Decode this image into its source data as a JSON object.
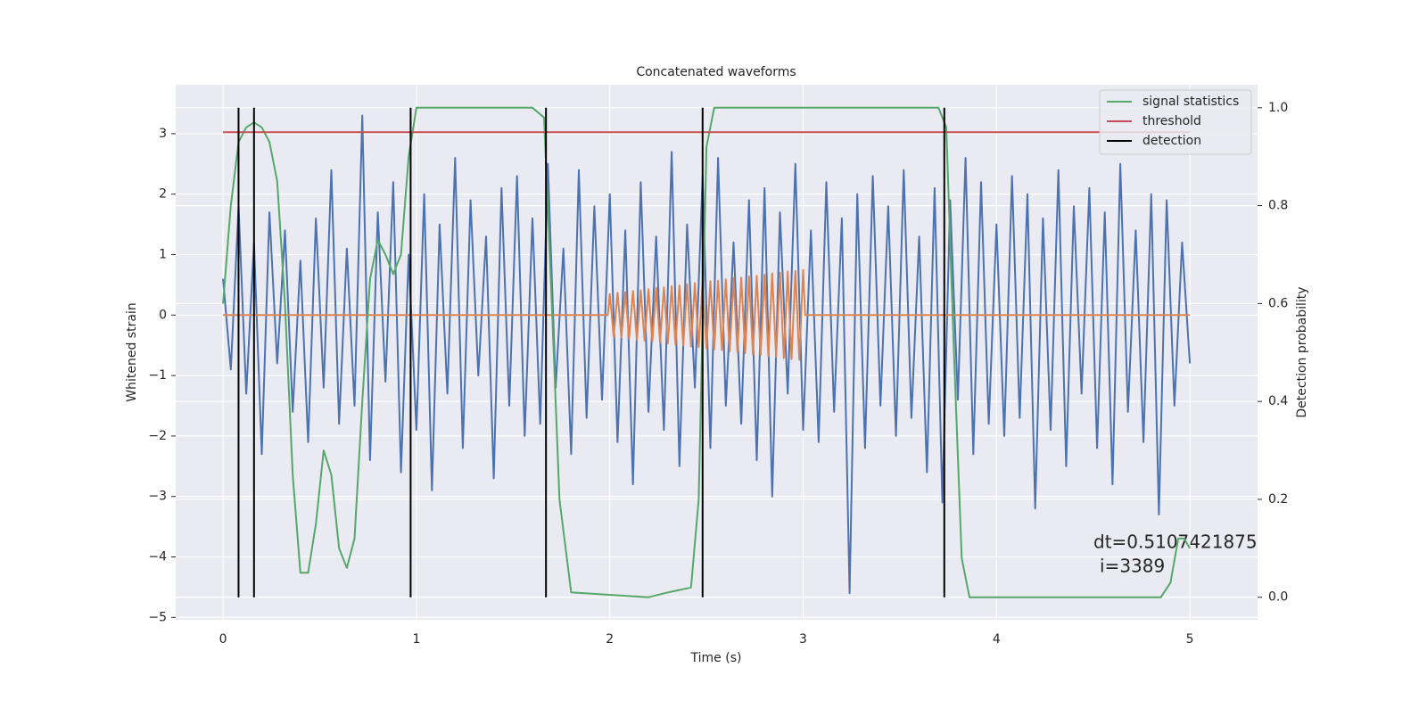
{
  "chart_data": {
    "type": "line",
    "title": "Concatenated waveforms",
    "xlabel": "Time (s)",
    "ylabel": "Whitened strain",
    "y2label": "Detection probability",
    "xlim": [
      -0.245,
      5.35
    ],
    "xticks": [
      0,
      1,
      2,
      3,
      4,
      5
    ],
    "ylim": [
      -5.04,
      3.81
    ],
    "yticks": [
      {
        "value": -5,
        "label": "−5"
      },
      {
        "value": -4,
        "label": "−4"
      },
      {
        "value": -3,
        "label": "−3"
      },
      {
        "value": -2,
        "label": "−2"
      },
      {
        "value": -1,
        "label": "−1"
      },
      0,
      1,
      2,
      3
    ],
    "y2lim": [
      -0.046,
      1.047
    ],
    "y2ticks": [
      {
        "value": 0,
        "label": "0.0"
      },
      0.2,
      0.4,
      0.6,
      0.8,
      {
        "value": 1,
        "label": "1.0"
      }
    ],
    "grid": true,
    "legend": "upper right",
    "series": [
      {
        "color": "#4c72b0",
        "kind": "line",
        "axis": "y",
        "x": [
          0,
          0.04,
          0.08,
          0.12,
          0.16,
          0.2,
          0.24,
          0.28,
          0.32,
          0.36,
          0.4,
          0.44,
          0.48,
          0.52,
          0.56,
          0.6,
          0.64,
          0.68,
          0.72,
          0.76,
          0.8,
          0.84,
          0.88,
          0.92,
          0.96,
          1,
          1.04,
          1.08,
          1.12,
          1.16,
          1.2,
          1.24,
          1.28,
          1.32,
          1.36,
          1.4,
          1.44,
          1.48,
          1.52,
          1.56,
          1.6,
          1.64,
          1.68,
          1.72,
          1.76,
          1.8,
          1.84,
          1.88,
          1.92,
          1.96,
          2,
          2.04,
          2.08,
          2.12,
          2.16,
          2.2,
          2.24,
          2.28,
          2.32,
          2.36,
          2.4,
          2.44,
          2.48,
          2.52,
          2.56,
          2.6,
          2.64,
          2.68,
          2.72,
          2.76,
          2.8,
          2.84,
          2.88,
          2.92,
          2.96,
          3,
          3.04,
          3.08,
          3.12,
          3.16,
          3.2,
          3.24,
          3.28,
          3.32,
          3.36,
          3.4,
          3.44,
          3.48,
          3.52,
          3.56,
          3.6,
          3.64,
          3.68,
          3.72,
          3.76,
          3.8,
          3.84,
          3.88,
          3.92,
          3.96,
          4,
          4.04,
          4.08,
          4.12,
          4.16,
          4.2,
          4.24,
          4.28,
          4.32,
          4.36,
          4.4,
          4.44,
          4.48,
          4.52,
          4.56,
          4.6,
          4.64,
          4.68,
          4.72,
          4.76,
          4.8,
          4.84,
          4.88,
          4.92,
          4.96,
          5
        ],
        "values": [
          0.6,
          -0.9,
          1.8,
          -1.3,
          1.2,
          -2.3,
          1.7,
          -0.8,
          1.4,
          -1.6,
          0.9,
          -2.1,
          1.6,
          -1.2,
          2.4,
          -1.8,
          1.1,
          -1.5,
          3.3,
          -2.4,
          1.7,
          -1.1,
          2.2,
          -2.6,
          1.0,
          -1.9,
          2.0,
          -2.9,
          1.5,
          -1.3,
          2.6,
          -2.2,
          1.9,
          -1.0,
          1.3,
          -2.7,
          2.1,
          -1.5,
          2.3,
          -2.0,
          1.6,
          -1.8,
          2.5,
          -1.2,
          1.1,
          -2.3,
          2.4,
          -1.7,
          1.8,
          -1.4,
          2.0,
          -2.1,
          1.4,
          -2.8,
          2.2,
          -1.6,
          1.3,
          -1.9,
          2.7,
          -2.5,
          1.5,
          -1.2,
          2.3,
          -2.2,
          2.6,
          -1.5,
          1.2,
          -1.8,
          1.9,
          -2.4,
          2.1,
          -3.0,
          1.7,
          -1.3,
          2.5,
          -1.9,
          1.4,
          -2.1,
          2.2,
          -1.6,
          1.6,
          -4.6,
          2.0,
          -2.2,
          2.3,
          -1.5,
          1.8,
          -2.0,
          2.4,
          -1.7,
          1.3,
          -2.6,
          2.1,
          -3.1,
          1.9,
          -1.4,
          2.6,
          -2.3,
          2.2,
          -1.8,
          1.5,
          -2.0,
          2.3,
          -1.7,
          2.0,
          -3.2,
          1.6,
          -1.9,
          2.4,
          -2.5,
          1.8,
          -1.3,
          2.1,
          -2.2,
          1.7,
          -2.8,
          2.5,
          -1.6,
          1.4,
          -2.1,
          2.0,
          -3.3,
          1.9,
          -1.5,
          1.2,
          -0.8
        ]
      },
      {
        "color": "#dd8452",
        "kind": "line",
        "axis": "y",
        "x": [
          0,
          1.99,
          2,
          2.02,
          2.04,
          2.06,
          2.08,
          2.1,
          2.12,
          2.14,
          2.16,
          2.18,
          2.2,
          2.22,
          2.24,
          2.26,
          2.28,
          2.3,
          2.32,
          2.34,
          2.36,
          2.38,
          2.4,
          2.42,
          2.44,
          2.46,
          2.48,
          2.5,
          2.52,
          2.54,
          2.56,
          2.58,
          2.6,
          2.62,
          2.64,
          2.66,
          2.68,
          2.7,
          2.72,
          2.74,
          2.76,
          2.78,
          2.8,
          2.82,
          2.84,
          2.86,
          2.88,
          2.9,
          2.92,
          2.94,
          2.96,
          2.98,
          3,
          3.01,
          5
        ],
        "values": [
          0,
          0,
          0.35,
          -0.36,
          0.37,
          -0.37,
          0.38,
          -0.39,
          0.4,
          -0.41,
          0.41,
          -0.42,
          0.43,
          -0.44,
          0.45,
          -0.45,
          0.46,
          -0.47,
          0.48,
          -0.49,
          0.49,
          -0.5,
          0.51,
          -0.52,
          0.53,
          -0.53,
          0.54,
          -0.55,
          0.56,
          -0.57,
          0.57,
          -0.58,
          0.59,
          -0.6,
          0.61,
          -0.61,
          0.62,
          -0.63,
          0.64,
          -0.65,
          0.65,
          -0.66,
          0.67,
          -0.68,
          0.69,
          -0.69,
          0.7,
          -0.71,
          0.72,
          -0.73,
          0.73,
          -0.74,
          0.75,
          0,
          0
        ]
      },
      {
        "name": "signal statistics",
        "color": "#55a868",
        "kind": "line",
        "axis": "y2",
        "x": [
          0,
          0.04,
          0.08,
          0.12,
          0.16,
          0.2,
          0.24,
          0.28,
          0.32,
          0.36,
          0.4,
          0.44,
          0.48,
          0.52,
          0.56,
          0.6,
          0.64,
          0.68,
          0.72,
          0.76,
          0.8,
          0.84,
          0.88,
          0.92,
          0.96,
          1,
          1.6,
          1.66,
          1.7,
          1.74,
          1.8,
          2.2,
          2.3,
          2.42,
          2.46,
          2.5,
          2.54,
          3.7,
          3.74,
          3.78,
          3.82,
          3.86,
          4.85,
          4.9,
          4.94,
          4.97,
          5
        ],
        "values": [
          0.6,
          0.8,
          0.93,
          0.96,
          0.97,
          0.96,
          0.93,
          0.85,
          0.6,
          0.25,
          0.05,
          0.05,
          0.15,
          0.3,
          0.25,
          0.1,
          0.06,
          0.12,
          0.4,
          0.65,
          0.73,
          0.7,
          0.66,
          0.7,
          0.9,
          1.0,
          1.0,
          0.98,
          0.6,
          0.2,
          0.01,
          0.0,
          0.01,
          0.02,
          0.2,
          0.92,
          1.0,
          1.0,
          0.96,
          0.5,
          0.08,
          0.0,
          0.0,
          0.03,
          0.12,
          0.12,
          0.1
        ]
      },
      {
        "name": "threshold",
        "color": "#c44e52",
        "kind": "line",
        "axis": "y2",
        "x": [
          0,
          5
        ],
        "values": [
          0.95,
          0.95
        ]
      },
      {
        "name": "detection",
        "color": "#000000",
        "kind": "vlines",
        "axis": "y2",
        "x": [
          0.08,
          0.16,
          0.97,
          1.67,
          2.48,
          3.73
        ],
        "span": [
          0,
          1
        ]
      }
    ],
    "annotations": [
      "dt=0.5107421875",
      "i=3389"
    ]
  }
}
